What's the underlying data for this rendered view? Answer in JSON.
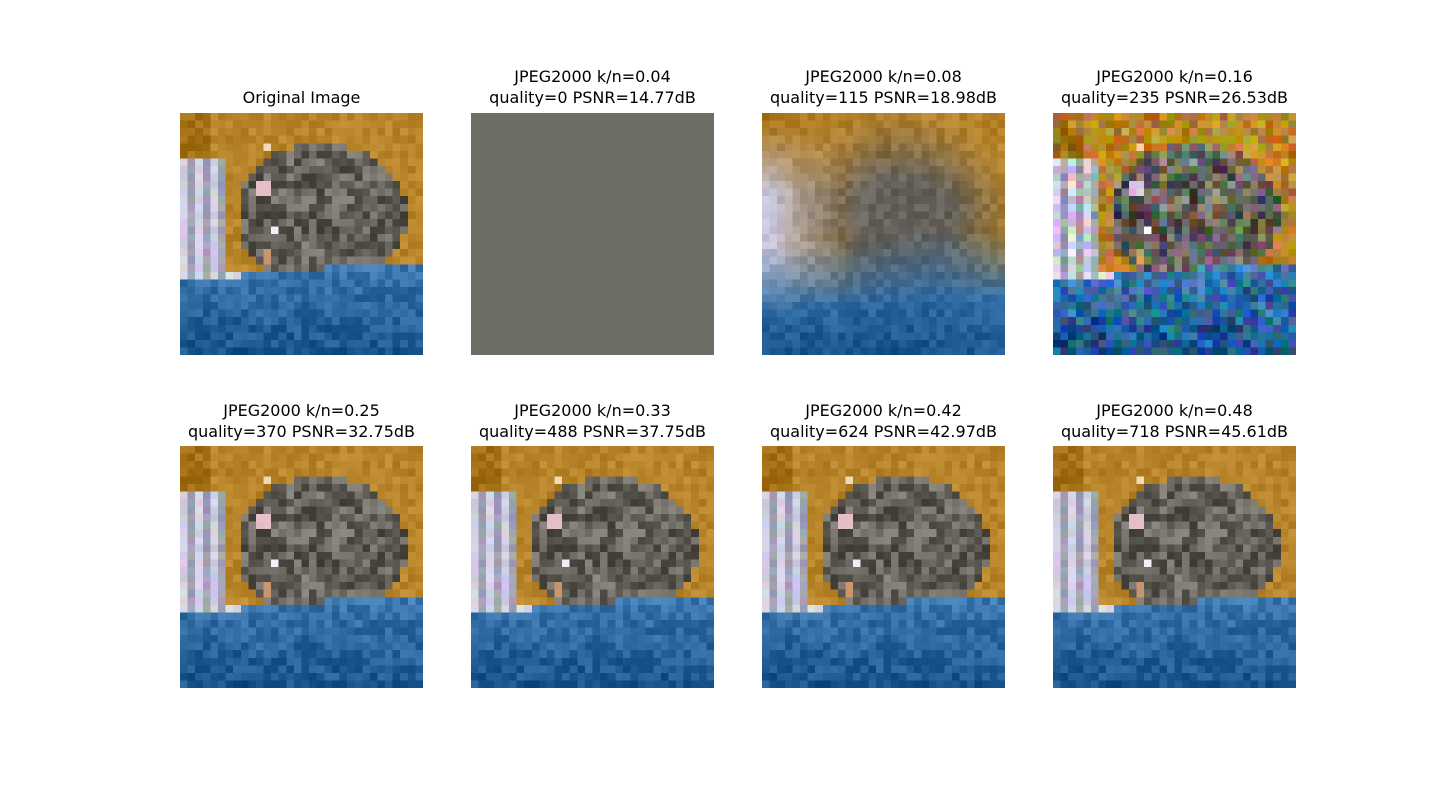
{
  "panels": [
    {
      "title": "Original Image",
      "kind": "cat",
      "quality_level": 1.0
    },
    {
      "title": "JPEG2000 k/n=0.04\nquality=0 PSNR=14.77dB",
      "kind": "flat",
      "quality_level": 0.0
    },
    {
      "title": "JPEG2000 k/n=0.08\nquality=115 PSNR=18.98dB",
      "kind": "blur",
      "quality_level": 0.15
    },
    {
      "title": "JPEG2000 k/n=0.16\nquality=235 PSNR=26.53dB",
      "kind": "noisy",
      "quality_level": 0.5
    },
    {
      "title": "JPEG2000 k/n=0.25\nquality=370 PSNR=32.75dB",
      "kind": "cat",
      "quality_level": 0.8
    },
    {
      "title": "JPEG2000 k/n=0.33\nquality=488 PSNR=37.75dB",
      "kind": "cat",
      "quality_level": 0.9
    },
    {
      "title": "JPEG2000 k/n=0.42\nquality=624 PSNR=42.97dB",
      "kind": "cat",
      "quality_level": 0.95
    },
    {
      "title": "JPEG2000 k/n=0.48\nquality=718 PSNR=45.61dB",
      "kind": "cat",
      "quality_level": 0.98
    }
  ],
  "colors": {
    "background_orange": "#b8842a",
    "blanket_blue": "#2f6aa3",
    "cat_gray": "#6d6b66",
    "white_highlight": "#e8e8ec",
    "flat_gray": "#6e6e66"
  }
}
